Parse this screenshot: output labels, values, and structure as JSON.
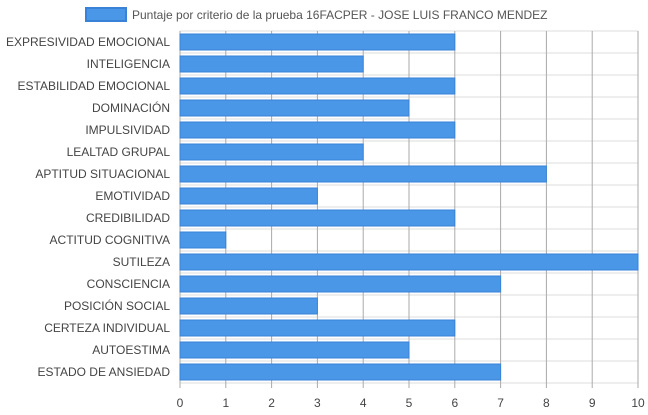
{
  "chart_data": {
    "type": "bar",
    "orientation": "horizontal",
    "legend": {
      "position": "top",
      "label": "Puntaje por criterio de la prueba 16FACPER - JOSE LUIS FRANCO MENDEZ"
    },
    "categories": [
      "EXPRESIVIDAD EMOCIONAL",
      "INTELIGENCIA",
      "ESTABILIDAD EMOCIONAL",
      "DOMINACIÓN",
      "IMPULSIVIDAD",
      "LEALTAD GRUPAL",
      "APTITUD SITUACIONAL",
      "EMOTIVIDAD",
      "CREDIBILIDAD",
      "ACTITUD COGNITIVA",
      "SUTILEZA",
      "CONSCIENCIA",
      "POSICIÓN SOCIAL",
      "CERTEZA INDIVIDUAL",
      "AUTOESTIMA",
      "ESTADO DE ANSIEDAD"
    ],
    "series": [
      {
        "name": "Puntaje por criterio de la prueba 16FACPER - JOSE LUIS FRANCO MENDEZ",
        "values": [
          6,
          4,
          6,
          5,
          6,
          4,
          8,
          3,
          6,
          1,
          10,
          7,
          3,
          6,
          5,
          7
        ]
      }
    ],
    "xlim": [
      0,
      10
    ],
    "xticks": [
      0,
      1,
      2,
      3,
      4,
      5,
      6,
      7,
      8,
      9,
      10
    ],
    "grid": true,
    "colors": {
      "bar_fill": "#4a97e8",
      "bar_stroke": "#3a82d8",
      "grid": "#dddddd",
      "vertical_grid": "#aaaaaa",
      "text": "#444444"
    }
  }
}
